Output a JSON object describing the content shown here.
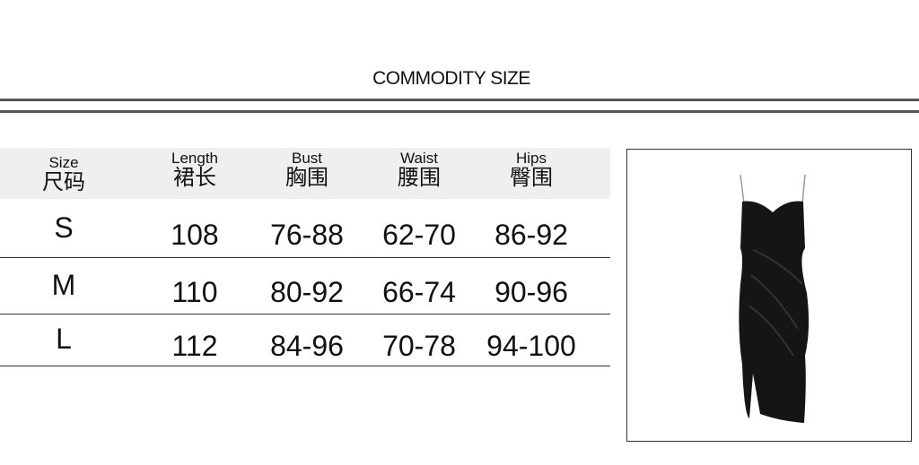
{
  "title": "COMMODITY SIZE",
  "table": {
    "headers": [
      {
        "en": "Size",
        "cn": "尺码"
      },
      {
        "en": "Length",
        "cn": "裙长"
      },
      {
        "en": "Bust",
        "cn": "胸围"
      },
      {
        "en": "Waist",
        "cn": "腰围"
      },
      {
        "en": "Hips",
        "cn": "臀围"
      }
    ],
    "rows": [
      [
        "S",
        "108",
        "76-88",
        "62-70",
        "86-92"
      ],
      [
        "M",
        "110",
        "80-92",
        "66-74",
        "90-96"
      ],
      [
        "L",
        "112",
        "84-96",
        "70-78",
        "94-100"
      ]
    ]
  },
  "product_image": {
    "icon": "black-satin-slip-dress",
    "color": "#151515"
  }
}
